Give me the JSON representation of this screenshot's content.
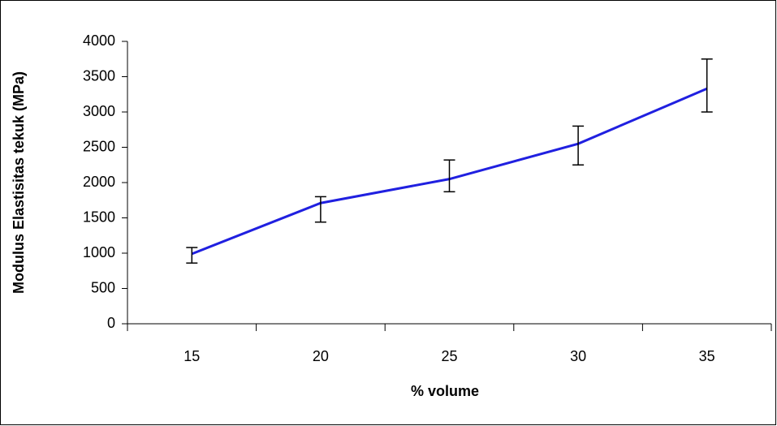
{
  "chart_data": {
    "type": "line",
    "x_label": "% volume",
    "y_label": "Modulus Elastisitas tekuk (MPa)",
    "categories": [
      "15",
      "20",
      "25",
      "30",
      "35"
    ],
    "values": [
      990,
      1710,
      2050,
      2550,
      3330
    ],
    "err_plus": [
      90,
      90,
      270,
      250,
      420
    ],
    "err_minus": [
      130,
      270,
      180,
      300,
      330
    ],
    "color": "#2020e0",
    "ylim": [
      0,
      4000
    ],
    "yticks": [
      0,
      500,
      1000,
      1500,
      2000,
      2500,
      3000,
      3500,
      4000
    ],
    "grid": false
  }
}
